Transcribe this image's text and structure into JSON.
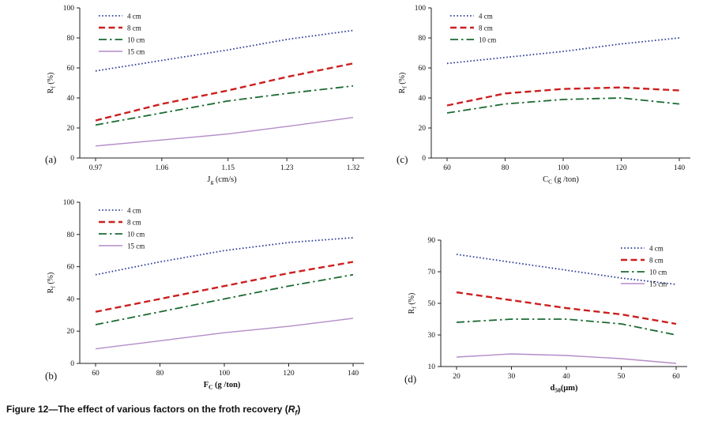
{
  "caption": {
    "main": "Figure 12—The effect of various factors on the froth recovery (",
    "symbol": "R",
    "symbol_sub": "f",
    "close": ")"
  },
  "colors": {
    "h4": "#2c3e94",
    "h8": "#cc1f1f",
    "h10": "#1c6a33",
    "h15": "#b48cc8"
  },
  "chart_data": [
    {
      "type": "line",
      "panel": "(a)",
      "ylabel": {
        "main": "R",
        "sub": "f",
        "unit": " (%)"
      },
      "xlabel": {
        "main": "J",
        "sub": "g",
        "unit": " (cm/s)",
        "bold": false
      },
      "x": [
        0.97,
        1.06,
        1.15,
        1.23,
        1.32
      ],
      "xticks": [
        "0.97",
        "1.06",
        "1.15",
        "1.23",
        "1.32"
      ],
      "ylim": [
        0,
        100
      ],
      "yticks": [
        0,
        20,
        40,
        60,
        80,
        100
      ],
      "grid": false,
      "legend_pos": "top-left",
      "series": [
        {
          "name": "4 cm",
          "style": "dotted",
          "color": "h4",
          "values": [
            58,
            65,
            72,
            79,
            85
          ]
        },
        {
          "name": "8 cm",
          "style": "dashed",
          "color": "h8",
          "values": [
            25,
            36,
            45,
            54,
            63
          ]
        },
        {
          "name": "10 cm",
          "style": "dashdot",
          "color": "h10",
          "values": [
            22,
            30,
            38,
            43,
            48
          ]
        },
        {
          "name": "15 cm",
          "style": "solid",
          "color": "h15",
          "values": [
            8,
            12,
            16,
            21,
            27
          ]
        }
      ]
    },
    {
      "type": "line",
      "panel": "(b)",
      "ylabel": {
        "main": "R",
        "sub": "f",
        "unit": " (%)"
      },
      "xlabel": {
        "main": "F",
        "sub": "C",
        "unit": " (g /ton)",
        "bold": true
      },
      "x": [
        60,
        80,
        100,
        120,
        140
      ],
      "xticks": [
        "60",
        "80",
        "100",
        "120",
        "140"
      ],
      "ylim": [
        0,
        100
      ],
      "yticks": [
        0,
        20,
        40,
        60,
        80,
        100
      ],
      "grid": false,
      "legend_pos": "top-left",
      "series": [
        {
          "name": "4 cm",
          "style": "dotted",
          "color": "h4",
          "values": [
            55,
            63,
            70,
            75,
            78
          ]
        },
        {
          "name": "8 cm",
          "style": "dashed",
          "color": "h8",
          "values": [
            32,
            40,
            48,
            56,
            63
          ]
        },
        {
          "name": "10 cm",
          "style": "dashdot",
          "color": "h10",
          "values": [
            24,
            32,
            40,
            48,
            55
          ]
        },
        {
          "name": "15 cm",
          "style": "solid",
          "color": "h15",
          "values": [
            9,
            14,
            19,
            23,
            28
          ]
        }
      ]
    },
    {
      "type": "line",
      "panel": "(c)",
      "ylabel": {
        "main": "R",
        "sub": "f",
        "unit": " (%)"
      },
      "xlabel": {
        "main": "C",
        "sub": "C",
        "unit": " (g /ton)",
        "bold": false
      },
      "x": [
        60,
        80,
        100,
        120,
        140
      ],
      "xticks": [
        "60",
        "80",
        "100",
        "120",
        "140"
      ],
      "ylim": [
        0,
        100
      ],
      "yticks": [
        0,
        20,
        40,
        60,
        80,
        100
      ],
      "grid": false,
      "legend_pos": "top-left",
      "series": [
        {
          "name": "4 cm",
          "style": "dotted",
          "color": "h4",
          "values": [
            63,
            67,
            71,
            76,
            80
          ]
        },
        {
          "name": "8 cm",
          "style": "dashed",
          "color": "h8",
          "values": [
            35,
            43,
            46,
            47,
            45
          ]
        },
        {
          "name": "10 cm",
          "style": "dashdot",
          "color": "h10",
          "values": [
            30,
            36,
            39,
            40,
            36
          ]
        }
      ]
    },
    {
      "type": "line",
      "panel": "(d)",
      "ylabel": {
        "main": "R",
        "sub": "f",
        "unit": " (%)"
      },
      "xlabel": {
        "main": "d",
        "sub": "50",
        "unit": "(μm)",
        "bold": true
      },
      "x": [
        20,
        30,
        40,
        50,
        60
      ],
      "xticks": [
        "20",
        "30",
        "40",
        "50",
        "60"
      ],
      "ylim": [
        10,
        90
      ],
      "yticks": [
        10,
        30,
        50,
        70,
        90
      ],
      "grid": false,
      "legend_pos": "top-right",
      "series": [
        {
          "name": "4 cm",
          "style": "dotted",
          "color": "h4",
          "values": [
            81,
            76,
            71,
            66,
            62
          ]
        },
        {
          "name": "8 cm",
          "style": "dashed",
          "color": "h8",
          "values": [
            57,
            52,
            47,
            43,
            37
          ]
        },
        {
          "name": "10 cm",
          "style": "dashdot",
          "color": "h10",
          "values": [
            38,
            40,
            40,
            37,
            30
          ]
        },
        {
          "name": "15 cm",
          "style": "solid",
          "color": "h15",
          "values": [
            16,
            18,
            17,
            15,
            12
          ]
        }
      ]
    }
  ]
}
